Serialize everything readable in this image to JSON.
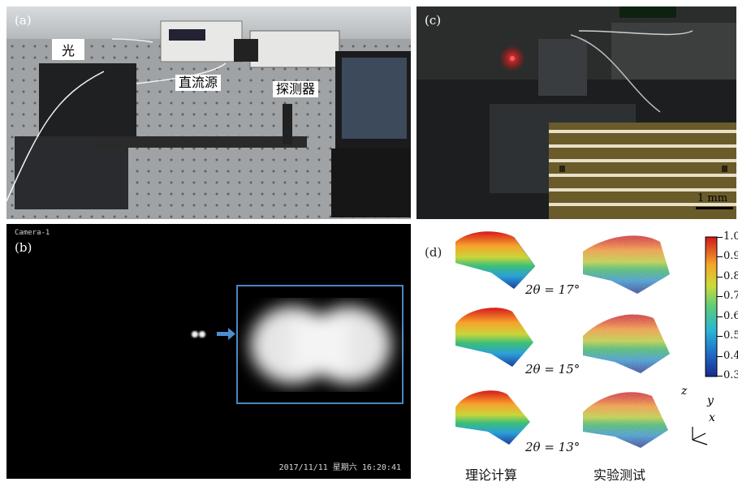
{
  "panel_a": {
    "label": "(a)",
    "tags": {
      "source_fragment": "光",
      "dc_source": "直流源",
      "detector": "探测器"
    }
  },
  "panel_b": {
    "label": "(b)",
    "camera_name": "Camera-1",
    "timestamp": "2017/11/11 星期六 16:20:41"
  },
  "panel_c": {
    "label": "(c)",
    "scale_bar": "1 mm"
  },
  "panel_d": {
    "label": "(d)",
    "angles": [
      "2θ = 17°",
      "2θ = 15°",
      "2θ = 13°"
    ],
    "colorbar_ticks": [
      "1.0",
      "0.9",
      "0.8",
      "0.7",
      "0.6",
      "0.5",
      "0.4",
      "0.3"
    ],
    "axes": {
      "z": "z",
      "y": "y",
      "x": "x"
    },
    "column_captions": {
      "theory": "理论计算",
      "experiment": "实验测试"
    }
  },
  "colors": {
    "frame_blue": "#4a86c0",
    "arrow_blue": "#4a90d0"
  }
}
